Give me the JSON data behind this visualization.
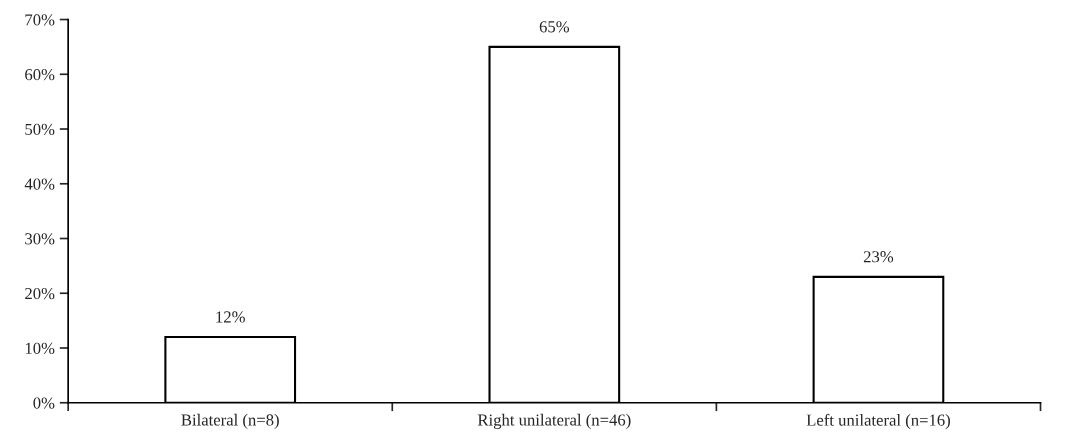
{
  "chart_data": {
    "type": "bar",
    "categories": [
      "Bilateral (n=8)",
      "Right unilateral (n=46)",
      "Left unilateral (n=16)"
    ],
    "values": [
      12,
      65,
      23
    ],
    "value_labels": [
      "12%",
      "65%",
      "23%"
    ],
    "color": "#ffffff",
    "ylim": [
      0,
      70
    ],
    "yticks": [
      {
        "value": 0,
        "label": "0%"
      },
      {
        "value": 10,
        "label": "10%"
      },
      {
        "value": 20,
        "label": "20%"
      },
      {
        "value": 30,
        "label": "30%"
      },
      {
        "value": 40,
        "label": "40%"
      },
      {
        "value": 50,
        "label": "50%"
      },
      {
        "value": 60,
        "label": "60%"
      },
      {
        "value": 70,
        "label": "70%"
      }
    ],
    "grid": false
  }
}
